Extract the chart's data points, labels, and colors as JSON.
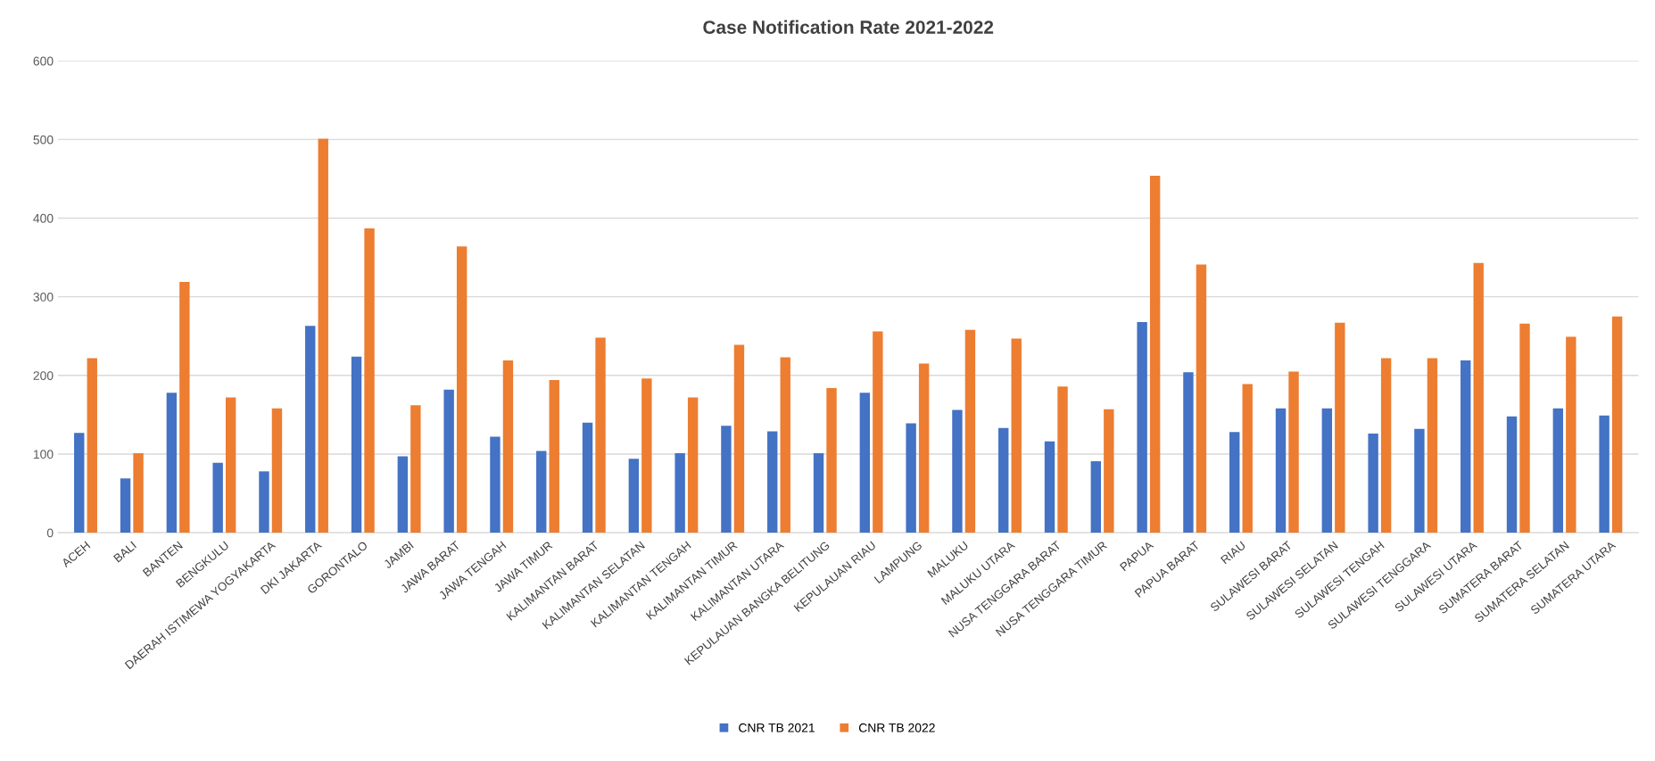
{
  "chart_data": {
    "type": "bar",
    "title": "Case Notification Rate 2021-2022",
    "categories": [
      "ACEH",
      "BALI",
      "BANTEN",
      "BENGKULU",
      "DAERAH ISTIMEWA YOGYAKARTA",
      "DKI JAKARTA",
      "GORONTALO",
      "JAMBI",
      "JAWA BARAT",
      "JAWA TENGAH",
      "JAWA TIMUR",
      "KALIMANTAN BARAT",
      "KALIMANTAN SELATAN",
      "KALIMANTAN TENGAH",
      "KALIMANTAN TIMUR",
      "KALIMANTAN UTARA",
      "KEPULAUAN BANGKA BELITUNG",
      "KEPULAUAN RIAU",
      "LAMPUNG",
      "MALUKU",
      "MALUKU UTARA",
      "NUSA TENGGARA BARAT",
      "NUSA TENGGARA TIMUR",
      "PAPUA",
      "PAPUA BARAT",
      "RIAU",
      "SULAWESI BARAT",
      "SULAWESI SELATAN",
      "SULAWESI TENGAH",
      "SULAWESI TENGGARA",
      "SULAWESI UTARA",
      "SUMATERA BARAT",
      "SUMATERA SELATAN",
      "SUMATERA UTARA"
    ],
    "series": [
      {
        "name": "CNR TB 2021",
        "color": "#4472c4",
        "values": [
          127,
          69,
          178,
          89,
          78,
          263,
          224,
          97,
          182,
          122,
          104,
          140,
          94,
          101,
          136,
          129,
          101,
          178,
          139,
          156,
          133,
          116,
          91,
          268,
          204,
          128,
          158,
          158,
          126,
          132,
          219,
          148,
          158,
          149
        ]
      },
      {
        "name": "CNR TB 2022",
        "color": "#ed7d31",
        "values": [
          222,
          101,
          319,
          172,
          158,
          501,
          387,
          162,
          364,
          219,
          194,
          248,
          196,
          172,
          239,
          223,
          184,
          256,
          215,
          258,
          247,
          186,
          157,
          454,
          341,
          189,
          205,
          267,
          222,
          222,
          343,
          266,
          249,
          275
        ]
      }
    ],
    "ylim": [
      0,
      600
    ],
    "yticks": [
      0,
      100,
      200,
      300,
      400,
      500,
      600
    ],
    "grid": "y",
    "legend": "bottom"
  }
}
